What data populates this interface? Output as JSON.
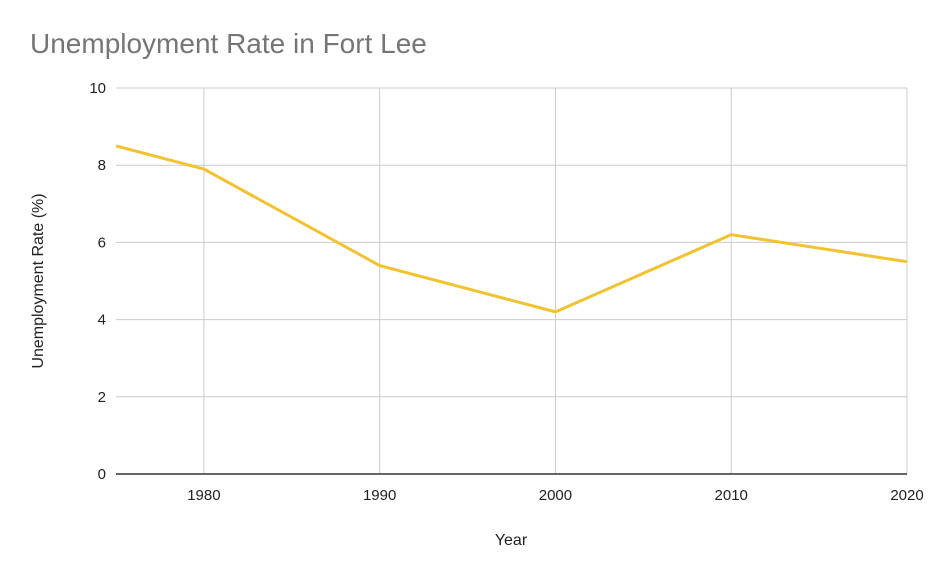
{
  "chart_data": {
    "type": "line",
    "title": "Unemployment Rate in Fort Lee",
    "xlabel": "Year",
    "ylabel": "Unemployment Rate (%)",
    "xlim": [
      1975,
      2020
    ],
    "ylim": [
      0,
      10
    ],
    "x_ticks": [
      1980,
      1990,
      2000,
      2010,
      2020
    ],
    "y_ticks": [
      0,
      2,
      4,
      6,
      8,
      10
    ],
    "grid": true,
    "series": [
      {
        "name": "Unemployment Rate (%)",
        "color": "#f1c232",
        "x": [
          1975,
          1980,
          1990,
          2000,
          2010,
          2020
        ],
        "values": [
          8.5,
          7.9,
          5.4,
          4.2,
          6.2,
          5.5
        ]
      }
    ]
  }
}
